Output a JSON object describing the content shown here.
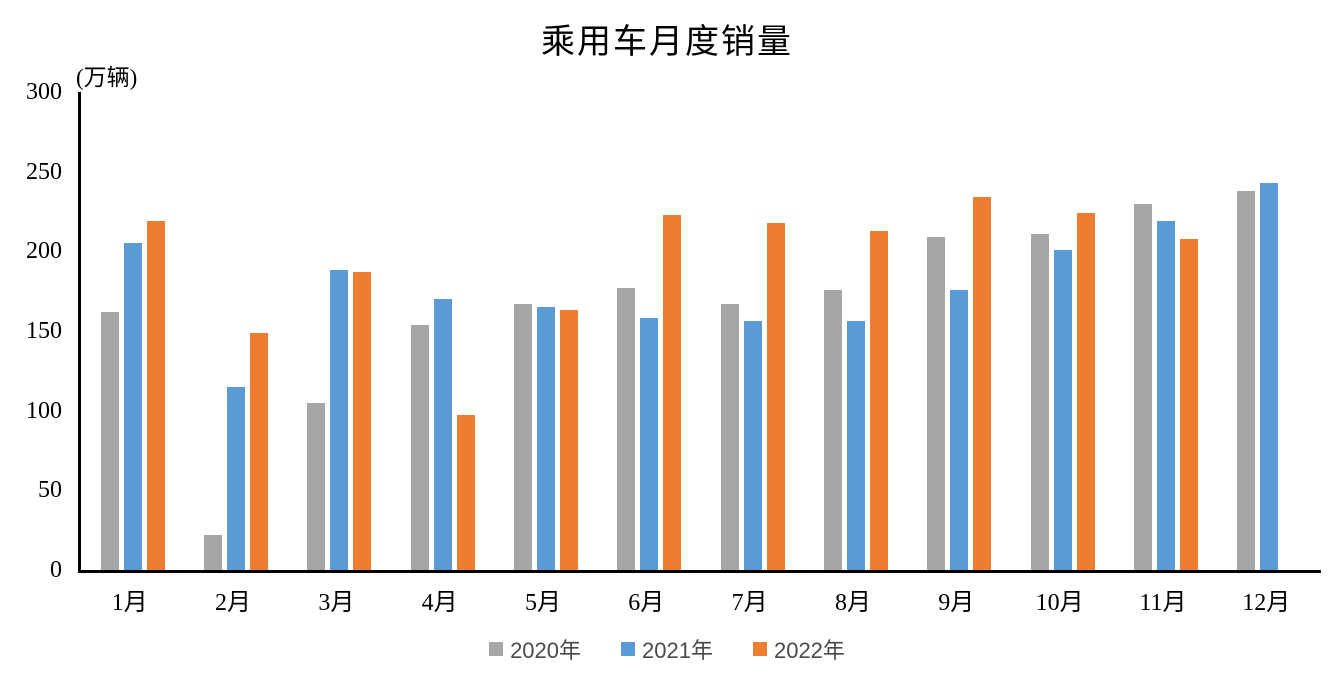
{
  "chart_data": {
    "type": "bar",
    "title": "乘用车月度销量",
    "unit_label": "(万辆)",
    "categories": [
      "1月",
      "2月",
      "3月",
      "4月",
      "5月",
      "6月",
      "7月",
      "8月",
      "9月",
      "10月",
      "11月",
      "12月"
    ],
    "series": [
      {
        "name": "2020年",
        "color": "#A6A6A6",
        "values": [
          162,
          22,
          105,
          154,
          167,
          177,
          167,
          176,
          209,
          211,
          230,
          238
        ]
      },
      {
        "name": "2021年",
        "color": "#5B9BD5",
        "values": [
          205,
          115,
          188,
          170,
          165,
          158,
          156,
          156,
          176,
          201,
          219,
          243
        ]
      },
      {
        "name": "2022年",
        "color": "#ED7D31",
        "values": [
          219,
          149,
          187,
          97,
          163,
          223,
          218,
          213,
          234,
          224,
          208,
          null
        ]
      }
    ],
    "ylim": [
      0,
      300
    ],
    "y_ticks": [
      0,
      50,
      100,
      150,
      200,
      250,
      300
    ],
    "grid": false,
    "legend_position": "bottom",
    "axis_color": "#000000",
    "background_color": "#FFFFFF"
  }
}
